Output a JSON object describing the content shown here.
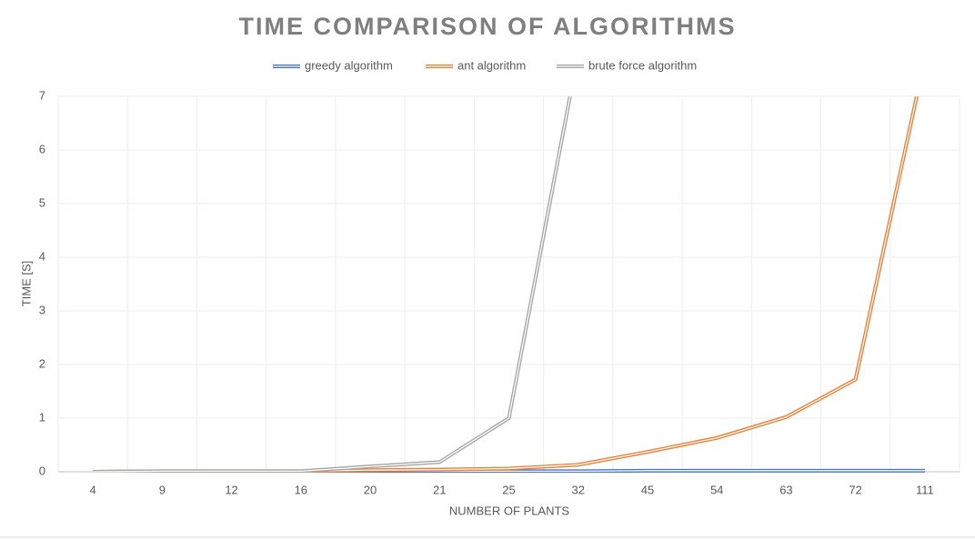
{
  "chart_data": {
    "type": "line",
    "title": "TIME COMPARISON OF ALGORITHMS",
    "x_label": "NUMBER OF PLANTS",
    "y_label": "TIME [S]",
    "categories": [
      "4",
      "9",
      "12",
      "16",
      "20",
      "21",
      "25",
      "32",
      "45",
      "54",
      "63",
      "72",
      "111"
    ],
    "series": [
      {
        "name": "greedy algorithm",
        "color": "#4472c4",
        "values": [
          0,
          0,
          0,
          0,
          0.01,
          0.01,
          0.01,
          0.01,
          0.02,
          0.02,
          0.02,
          0.02,
          0.02
        ]
      },
      {
        "name": "ant algorithm",
        "color": "#ed7d31",
        "values": [
          0,
          0.01,
          0.01,
          0.01,
          0.03,
          0.04,
          0.06,
          0.13,
          0.37,
          0.63,
          1.02,
          1.72,
          7.7
        ]
      },
      {
        "name": "brute force algorithm",
        "color": "#a5a5a5",
        "values": [
          0,
          0.01,
          0.01,
          0.01,
          0.1,
          0.18,
          1.0,
          7.8,
          null,
          null,
          null,
          null,
          null
        ]
      }
    ],
    "ylim": [
      0,
      7
    ],
    "yticks": [
      0,
      1,
      2,
      3,
      4,
      5,
      6,
      7
    ],
    "grid": true,
    "legend": "top"
  }
}
